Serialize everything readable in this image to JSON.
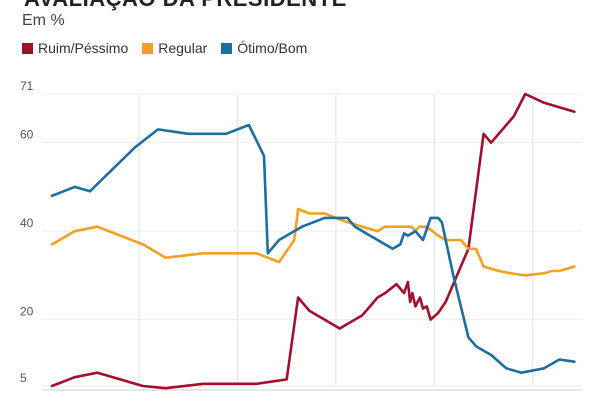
{
  "chart_data": {
    "type": "line",
    "title": "AVALIAÇÃO DA PRESIDENTE",
    "subtitle": "Em %",
    "xlabel": "",
    "ylabel": "",
    "ylim": [
      5,
      71
    ],
    "yticks": [
      5,
      20,
      40,
      60,
      71
    ],
    "grid": "vertical",
    "legend_position": "top-left",
    "series": [
      {
        "name": "Ruim/Péssimo",
        "color": "#a50f2d",
        "points": [
          [
            0,
            5
          ],
          [
            3,
            7
          ],
          [
            6,
            8
          ],
          [
            12,
            5
          ],
          [
            15,
            4.5
          ],
          [
            20,
            5.5
          ],
          [
            27,
            5.5
          ],
          [
            31,
            6.5
          ],
          [
            32.5,
            25
          ],
          [
            34,
            22
          ],
          [
            38,
            18
          ],
          [
            41,
            21
          ],
          [
            43,
            25
          ],
          [
            44,
            26
          ],
          [
            45.5,
            28
          ],
          [
            46.5,
            26
          ],
          [
            47,
            28.5
          ],
          [
            47.3,
            24
          ],
          [
            47.6,
            26
          ],
          [
            48,
            23
          ],
          [
            48.6,
            25
          ],
          [
            49,
            22.5
          ],
          [
            49.5,
            23
          ],
          [
            50,
            20
          ],
          [
            51,
            21.5
          ],
          [
            52,
            24
          ],
          [
            55,
            36
          ],
          [
            57,
            62
          ],
          [
            58,
            60
          ],
          [
            61,
            66
          ],
          [
            62.5,
            71
          ],
          [
            65,
            69
          ],
          [
            67,
            68
          ],
          [
            69,
            67
          ]
        ]
      },
      {
        "name": "Regular",
        "color": "#f5a020",
        "points": [
          [
            0,
            37
          ],
          [
            3,
            40
          ],
          [
            6,
            41
          ],
          [
            12,
            37
          ],
          [
            15,
            34
          ],
          [
            20,
            35
          ],
          [
            27,
            35
          ],
          [
            30,
            33
          ],
          [
            32,
            38
          ],
          [
            32.5,
            45
          ],
          [
            34,
            44
          ],
          [
            36,
            44
          ],
          [
            39,
            42
          ],
          [
            43,
            40
          ],
          [
            44,
            41
          ],
          [
            46,
            41
          ],
          [
            47,
            41
          ],
          [
            47.5,
            41
          ],
          [
            48,
            40
          ],
          [
            48.5,
            41
          ],
          [
            49.5,
            41
          ],
          [
            51,
            39
          ],
          [
            52,
            38
          ],
          [
            54,
            38
          ],
          [
            55,
            36
          ],
          [
            56,
            36
          ],
          [
            57,
            32
          ],
          [
            58,
            31.5
          ],
          [
            59,
            31
          ],
          [
            60.5,
            30.5
          ],
          [
            62.5,
            30
          ],
          [
            65,
            30.5
          ],
          [
            66,
            31
          ],
          [
            67,
            31
          ],
          [
            69,
            32
          ]
        ]
      },
      {
        "name": "Ótimo/Bom",
        "color": "#1b6fa0",
        "points": [
          [
            0,
            48
          ],
          [
            3,
            50
          ],
          [
            5,
            49
          ],
          [
            11,
            59
          ],
          [
            14,
            63
          ],
          [
            18,
            62
          ],
          [
            23,
            62
          ],
          [
            26,
            64
          ],
          [
            28,
            57
          ],
          [
            28.5,
            35
          ],
          [
            30,
            38
          ],
          [
            33,
            41
          ],
          [
            36,
            43
          ],
          [
            39,
            43
          ],
          [
            40,
            41
          ],
          [
            42,
            39
          ],
          [
            43,
            38
          ],
          [
            45,
            36
          ],
          [
            46,
            37
          ],
          [
            46.5,
            39.5
          ],
          [
            47,
            39
          ],
          [
            48,
            40
          ],
          [
            49,
            38
          ],
          [
            50,
            43
          ],
          [
            51,
            43
          ],
          [
            51.5,
            42
          ],
          [
            53,
            30
          ],
          [
            55,
            16
          ],
          [
            56,
            14
          ],
          [
            58,
            12
          ],
          [
            60,
            9
          ],
          [
            62,
            8
          ],
          [
            65,
            9
          ],
          [
            67,
            11
          ],
          [
            69,
            10.5
          ]
        ]
      }
    ]
  }
}
